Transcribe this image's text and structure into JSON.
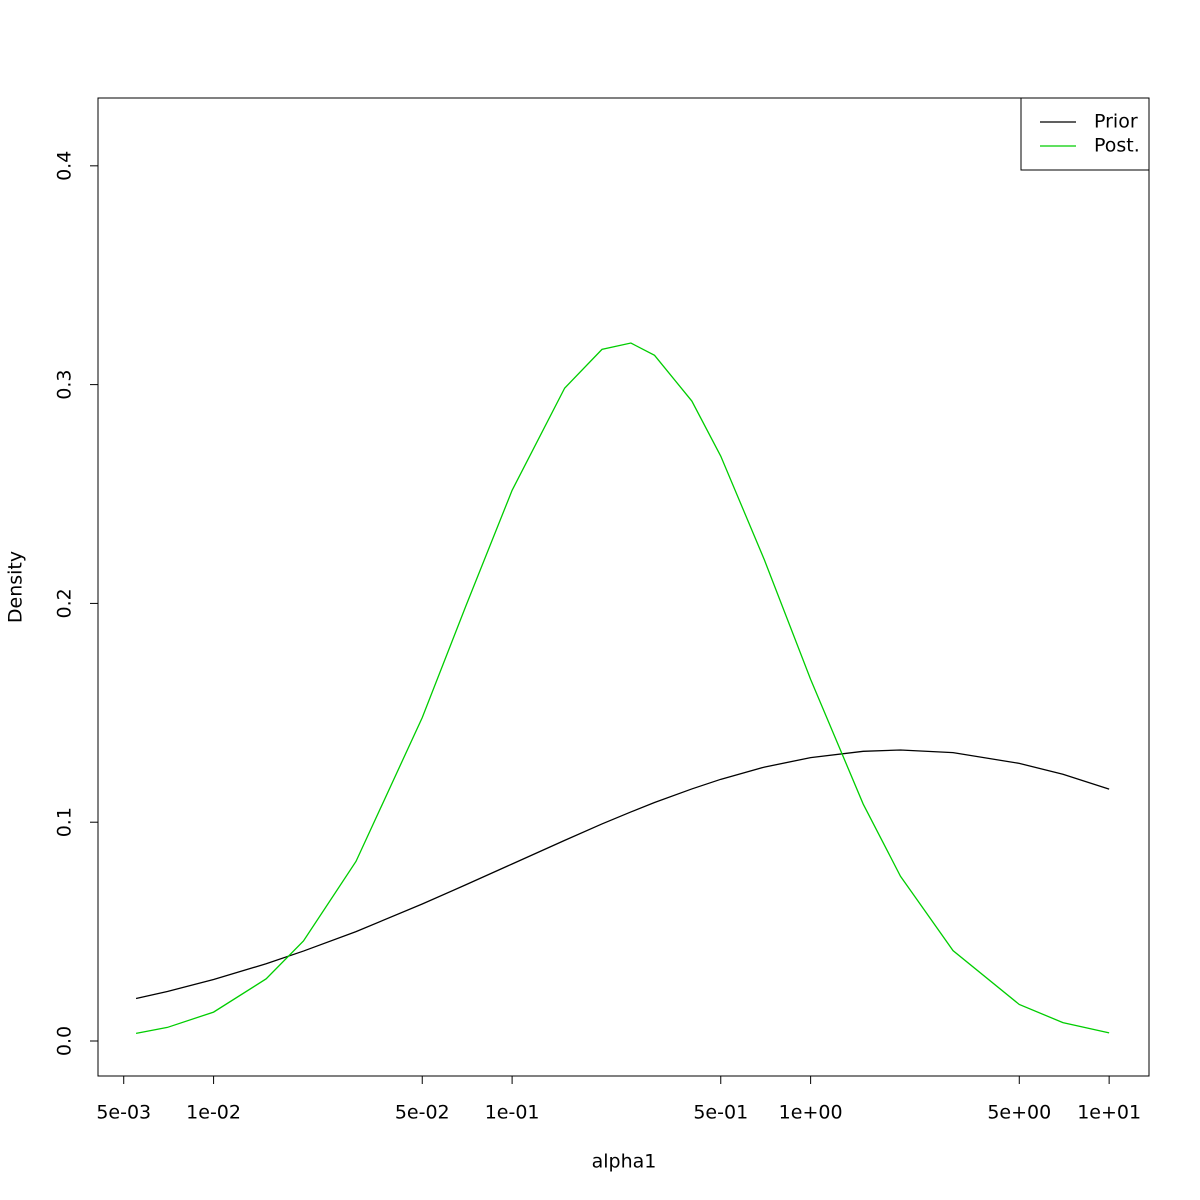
{
  "chart_data": {
    "type": "line",
    "x_label": "alpha1",
    "y_label": "Density",
    "x_log": true,
    "x": [
      0.0055,
      0.007,
      0.01,
      0.015,
      0.02,
      0.03,
      0.05,
      0.07,
      0.1,
      0.15,
      0.2,
      0.25,
      0.3,
      0.4,
      0.5,
      0.7,
      1,
      1.5,
      2,
      3,
      5,
      7,
      10
    ],
    "series": [
      {
        "name": "Prior",
        "color": "#000000",
        "values": [
          0.0194,
          0.0226,
          0.0281,
          0.0353,
          0.0411,
          0.05,
          0.0626,
          0.0714,
          0.0809,
          0.0917,
          0.0992,
          0.1047,
          0.109,
          0.1152,
          0.1196,
          0.1252,
          0.1295,
          0.1324,
          0.133,
          0.1318,
          0.1269,
          0.1219,
          0.1151
        ]
      },
      {
        "name": "Post.",
        "color": "#00cd00",
        "values": [
          0.0035,
          0.0062,
          0.0132,
          0.0284,
          0.0457,
          0.0821,
          0.1478,
          0.1988,
          0.2517,
          0.2984,
          0.3161,
          0.319,
          0.3134,
          0.2925,
          0.2673,
          0.2199,
          0.1653,
          0.1083,
          0.0753,
          0.0413,
          0.0167,
          0.0084,
          0.0037
        ]
      }
    ],
    "xlim": [
      0.0041,
      13.6
    ],
    "ylim": [
      -0.016,
      0.431
    ],
    "xticks": [
      {
        "value": 0.005,
        "label": "5e-03"
      },
      {
        "value": 0.01,
        "label": "1e-02"
      },
      {
        "value": 0.05,
        "label": "5e-02"
      },
      {
        "value": 0.1,
        "label": "1e-01"
      },
      {
        "value": 0.5,
        "label": "5e-01"
      },
      {
        "value": 1,
        "label": "1e+00"
      },
      {
        "value": 5,
        "label": "5e+00"
      },
      {
        "value": 10,
        "label": "1e+01"
      }
    ],
    "yticks": [
      {
        "value": 0,
        "label": "0.0"
      },
      0.1,
      0.2,
      0.3,
      0.4
    ],
    "grid": false,
    "legend_position": "top-right"
  }
}
